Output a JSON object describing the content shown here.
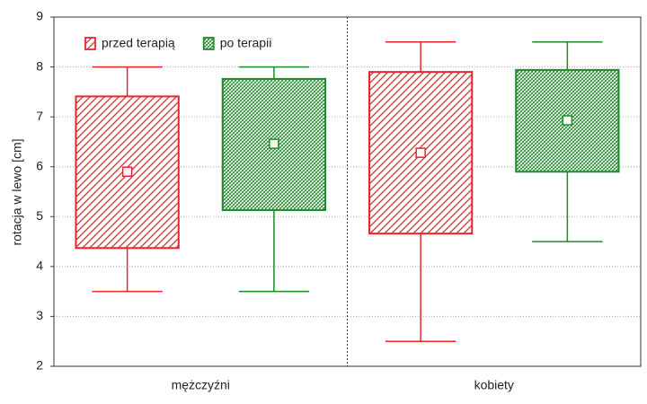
{
  "chart_data": {
    "type": "box",
    "y_label": "rotacja w lewo [cm]",
    "categories": [
      "mężczyźni",
      "kobiety"
    ],
    "ylim": [
      2,
      9
    ],
    "yticks": [
      2,
      3,
      4,
      5,
      6,
      7,
      8,
      9
    ],
    "grid": true,
    "legend": "top-left",
    "series": [
      {
        "name": "przed terapią",
        "color": "#e8262a",
        "mean": [
          5.9,
          6.28
        ],
        "box_low": [
          4.37,
          4.66
        ],
        "box_high": [
          7.41,
          7.9
        ],
        "whisker_low": [
          3.5,
          2.5
        ],
        "whisker_high": [
          8,
          8.5
        ]
      },
      {
        "name": "po terapii",
        "color": "#1f8a2a",
        "mean": [
          6.46,
          6.93
        ],
        "box_low": [
          5.13,
          5.9
        ],
        "box_high": [
          7.76,
          7.94
        ],
        "whisker_low": [
          3.5,
          4.5
        ],
        "whisker_high": [
          8,
          8.5
        ]
      }
    ]
  }
}
